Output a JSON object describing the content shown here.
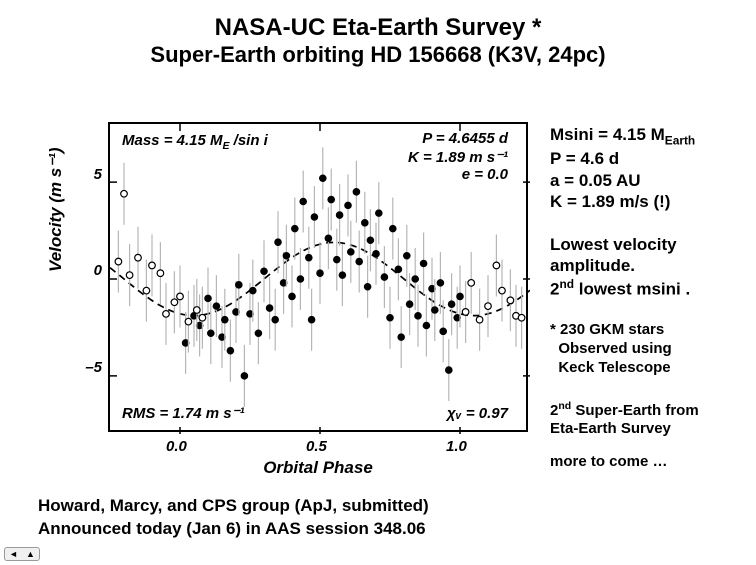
{
  "header": {
    "line1": "NASA-UC Eta-Earth Survey *",
    "line2": "Super-Earth orbiting HD 156668 (K3V, 24pc)"
  },
  "chart": {
    "type": "scatter",
    "xlabel": "Orbital Phase",
    "ylabel": "Velocity  (m s⁻¹)",
    "xlim": [
      -0.25,
      1.25
    ],
    "ylim": [
      -8,
      8
    ],
    "xticks": [
      0.0,
      0.5,
      1.0
    ],
    "xtick_labels": [
      "0.0",
      "0.5",
      "1.0"
    ],
    "yticks": [
      -5,
      0,
      5
    ],
    "ytick_labels": [
      "–5",
      "0",
      "5"
    ],
    "tick_fontsize": 15,
    "label_fontsize": 17,
    "background_color": "#ffffff",
    "frame_color": "#000000",
    "frame_width": 2,
    "error_bar_color": "#b6b6b6",
    "error_bar_width": 1.2,
    "error_magnitude": 1.6,
    "filled_marker": {
      "fill": "#000000",
      "stroke": "#000000",
      "radius": 3.3
    },
    "open_marker": {
      "fill": "#ffffff",
      "stroke": "#000000",
      "radius": 3.3,
      "stroke_width": 1.2
    },
    "fit_curve": {
      "style": "dashed",
      "color": "#000000",
      "width": 1.7,
      "amplitude": 1.89,
      "phase_peak": 0.55
    },
    "annotations": {
      "mass": "Mass = 4.15 M_E /sin i",
      "p": "P = 4.6455 d",
      "k": "K = 1.89 m s⁻¹",
      "e": "e = 0.0",
      "rms": "RMS = 1.74 m s⁻¹",
      "chi": "χᵥ = 0.97"
    },
    "open_points": [
      [
        -0.22,
        0.9
      ],
      [
        -0.2,
        4.4
      ],
      [
        -0.18,
        0.2
      ],
      [
        -0.15,
        1.1
      ],
      [
        -0.12,
        -0.6
      ],
      [
        -0.1,
        0.7
      ],
      [
        -0.07,
        0.3
      ],
      [
        -0.05,
        -1.8
      ],
      [
        -0.02,
        -1.2
      ],
      [
        0.0,
        -0.9
      ],
      [
        0.03,
        -2.2
      ],
      [
        0.06,
        -1.6
      ],
      [
        0.08,
        -2.0
      ],
      [
        1.02,
        -1.7
      ],
      [
        1.04,
        -0.2
      ],
      [
        1.07,
        -2.1
      ],
      [
        1.1,
        -1.4
      ],
      [
        1.13,
        0.7
      ],
      [
        1.15,
        -0.6
      ],
      [
        1.18,
        -1.1
      ],
      [
        1.2,
        -1.9
      ],
      [
        1.22,
        -2.0
      ]
    ],
    "filled_points": [
      [
        0.02,
        -3.3
      ],
      [
        0.05,
        -1.9
      ],
      [
        0.07,
        -2.4
      ],
      [
        0.1,
        -1.0
      ],
      [
        0.11,
        -2.8
      ],
      [
        0.13,
        -1.4
      ],
      [
        0.15,
        -3.0
      ],
      [
        0.16,
        -2.1
      ],
      [
        0.18,
        -3.7
      ],
      [
        0.2,
        -1.7
      ],
      [
        0.21,
        -0.3
      ],
      [
        0.23,
        -5.0
      ],
      [
        0.25,
        -1.8
      ],
      [
        0.26,
        -0.6
      ],
      [
        0.28,
        -2.8
      ],
      [
        0.3,
        0.4
      ],
      [
        0.32,
        -1.5
      ],
      [
        0.34,
        -2.1
      ],
      [
        0.35,
        1.9
      ],
      [
        0.37,
        -0.2
      ],
      [
        0.38,
        1.2
      ],
      [
        0.4,
        -0.9
      ],
      [
        0.41,
        2.6
      ],
      [
        0.43,
        0.0
      ],
      [
        0.44,
        4.0
      ],
      [
        0.46,
        1.1
      ],
      [
        0.47,
        -2.1
      ],
      [
        0.48,
        3.2
      ],
      [
        0.5,
        0.3
      ],
      [
        0.51,
        5.2
      ],
      [
        0.53,
        2.1
      ],
      [
        0.54,
        4.1
      ],
      [
        0.56,
        1.0
      ],
      [
        0.57,
        3.3
      ],
      [
        0.58,
        0.2
      ],
      [
        0.6,
        3.8
      ],
      [
        0.61,
        1.4
      ],
      [
        0.63,
        4.5
      ],
      [
        0.64,
        0.9
      ],
      [
        0.66,
        2.9
      ],
      [
        0.67,
        -0.4
      ],
      [
        0.68,
        2.0
      ],
      [
        0.7,
        1.3
      ],
      [
        0.71,
        3.4
      ],
      [
        0.73,
        0.1
      ],
      [
        0.75,
        -2.0
      ],
      [
        0.76,
        2.6
      ],
      [
        0.78,
        0.5
      ],
      [
        0.79,
        -3.0
      ],
      [
        0.81,
        1.2
      ],
      [
        0.82,
        -1.3
      ],
      [
        0.84,
        0.0
      ],
      [
        0.85,
        -1.9
      ],
      [
        0.87,
        0.8
      ],
      [
        0.88,
        -2.4
      ],
      [
        0.9,
        -0.5
      ],
      [
        0.91,
        -1.6
      ],
      [
        0.93,
        -0.2
      ],
      [
        0.94,
        -2.7
      ],
      [
        0.96,
        -4.7
      ],
      [
        0.97,
        -1.3
      ],
      [
        0.99,
        -2.0
      ],
      [
        1.0,
        -0.9
      ]
    ]
  },
  "sidebar": {
    "params": {
      "msini_prefix": "Msini = 4.15 M",
      "msini_sub": "Earth",
      "p": "P = 4.6 d",
      "a": "a = 0.05 AU",
      "k": "K = 1.89 m/s (!)"
    },
    "notes": {
      "l1": "Lowest velocity",
      "l2": "amplitude.",
      "l3_pre": "2",
      "l3_sup": "nd",
      "l3_post": " lowest msini ."
    },
    "foot1": {
      "l1": "* 230 GKM stars",
      "l2": "  Observed using",
      "l3": "  Keck Telescope"
    },
    "foot2": {
      "l1_pre": "2",
      "l1_sup": "nd",
      "l1_post": " Super-Earth from",
      "l2": "Eta-Earth Survey"
    },
    "foot3": "more to come …"
  },
  "footer": {
    "l1": "Howard, Marcy, and CPS group (ApJ, submitted)",
    "l2": "Announced today (Jan 6) in AAS session 348.06"
  },
  "nav": {
    "prev": "◄",
    "next": "▲"
  }
}
